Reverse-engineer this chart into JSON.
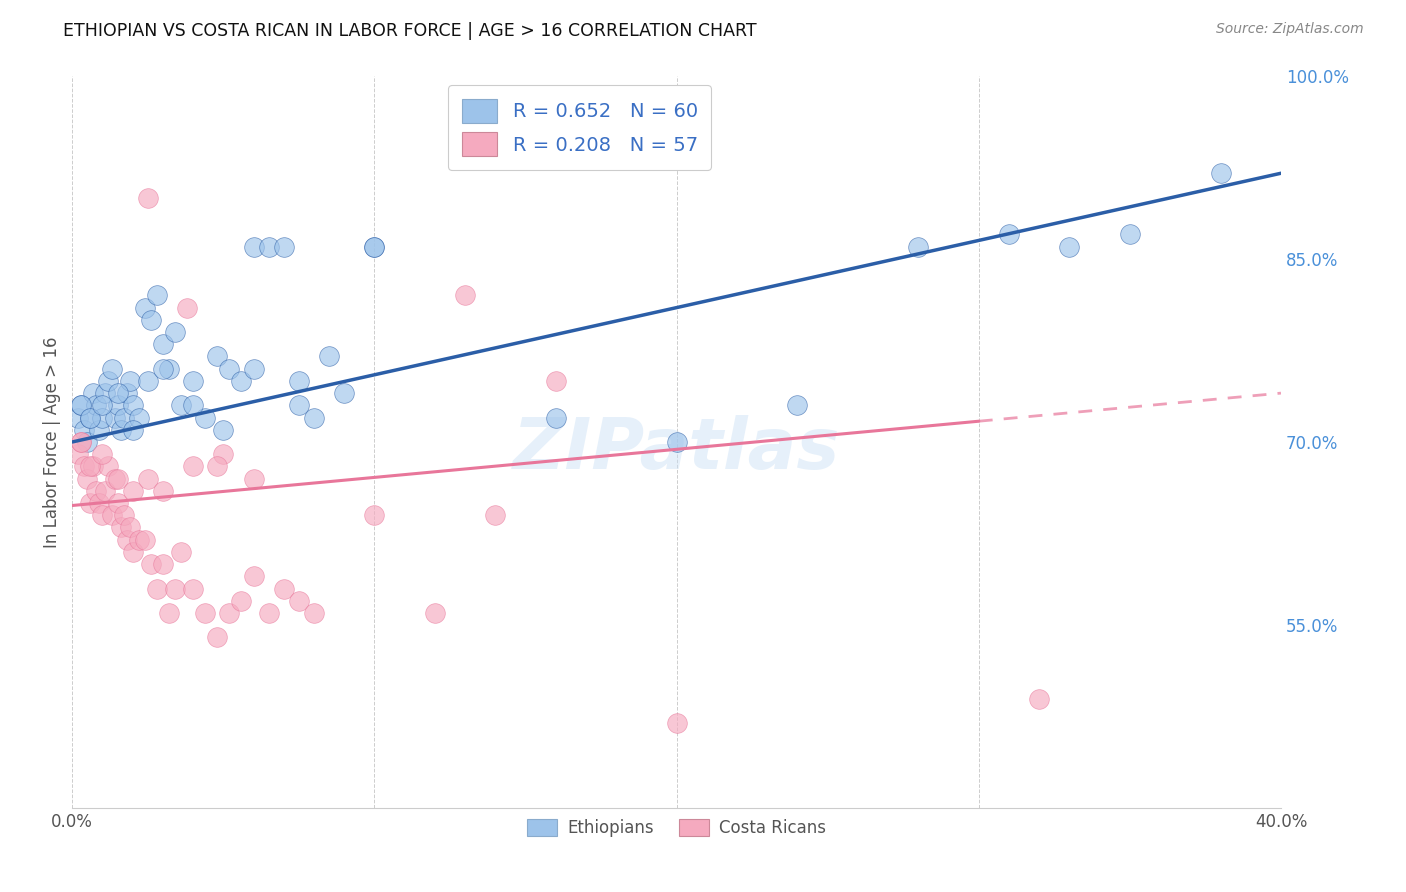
{
  "title": "ETHIOPIAN VS COSTA RICAN IN LABOR FORCE | AGE > 16 CORRELATION CHART",
  "source": "Source: ZipAtlas.com",
  "ylabel": "In Labor Force | Age > 16",
  "xlim": [
    0.0,
    0.4
  ],
  "ylim": [
    0.4,
    1.0
  ],
  "yticks": [
    0.55,
    0.7,
    0.85,
    1.0
  ],
  "ytick_labels": [
    "55.0%",
    "70.0%",
    "85.0%",
    "100.0%"
  ],
  "xticks": [
    0.0,
    0.1,
    0.2,
    0.3,
    0.4
  ],
  "xtick_labels": [
    "0.0%",
    "",
    "",
    "",
    "40.0%"
  ],
  "blue_color": "#9DC3EA",
  "pink_color": "#F5AABF",
  "blue_line_color": "#2B5EA7",
  "pink_line_color": "#E8769A",
  "r_blue": 0.652,
  "n_blue": 60,
  "r_pink": 0.208,
  "n_pink": 57,
  "legend_labels": [
    "Ethiopians",
    "Costa Ricans"
  ],
  "watermark": "ZIPatlas",
  "blue_scatter_x": [
    0.002,
    0.003,
    0.004,
    0.005,
    0.006,
    0.007,
    0.008,
    0.009,
    0.01,
    0.011,
    0.012,
    0.013,
    0.014,
    0.015,
    0.016,
    0.017,
    0.018,
    0.019,
    0.02,
    0.022,
    0.024,
    0.026,
    0.028,
    0.03,
    0.032,
    0.034,
    0.036,
    0.04,
    0.044,
    0.048,
    0.052,
    0.056,
    0.06,
    0.065,
    0.07,
    0.075,
    0.08,
    0.085,
    0.09,
    0.1,
    0.003,
    0.006,
    0.01,
    0.015,
    0.02,
    0.025,
    0.03,
    0.04,
    0.05,
    0.06,
    0.075,
    0.1,
    0.16,
    0.2,
    0.24,
    0.28,
    0.31,
    0.33,
    0.35,
    0.38
  ],
  "blue_scatter_y": [
    0.72,
    0.73,
    0.71,
    0.7,
    0.72,
    0.74,
    0.73,
    0.71,
    0.72,
    0.74,
    0.75,
    0.76,
    0.72,
    0.73,
    0.71,
    0.72,
    0.74,
    0.75,
    0.73,
    0.72,
    0.81,
    0.8,
    0.82,
    0.78,
    0.76,
    0.79,
    0.73,
    0.75,
    0.72,
    0.77,
    0.76,
    0.75,
    0.86,
    0.86,
    0.86,
    0.75,
    0.72,
    0.77,
    0.74,
    0.86,
    0.73,
    0.72,
    0.73,
    0.74,
    0.71,
    0.75,
    0.76,
    0.73,
    0.71,
    0.76,
    0.73,
    0.86,
    0.72,
    0.7,
    0.73,
    0.86,
    0.87,
    0.86,
    0.87,
    0.92
  ],
  "pink_scatter_x": [
    0.002,
    0.003,
    0.004,
    0.005,
    0.006,
    0.007,
    0.008,
    0.009,
    0.01,
    0.011,
    0.012,
    0.013,
    0.014,
    0.015,
    0.016,
    0.017,
    0.018,
    0.019,
    0.02,
    0.022,
    0.024,
    0.026,
    0.028,
    0.03,
    0.032,
    0.034,
    0.036,
    0.04,
    0.044,
    0.048,
    0.052,
    0.056,
    0.06,
    0.065,
    0.07,
    0.075,
    0.08,
    0.1,
    0.12,
    0.14,
    0.003,
    0.006,
    0.01,
    0.015,
    0.02,
    0.025,
    0.03,
    0.04,
    0.05,
    0.16,
    0.2,
    0.32,
    0.13,
    0.025,
    0.038,
    0.048,
    0.06
  ],
  "pink_scatter_y": [
    0.69,
    0.7,
    0.68,
    0.67,
    0.65,
    0.68,
    0.66,
    0.65,
    0.64,
    0.66,
    0.68,
    0.64,
    0.67,
    0.65,
    0.63,
    0.64,
    0.62,
    0.63,
    0.61,
    0.62,
    0.62,
    0.6,
    0.58,
    0.6,
    0.56,
    0.58,
    0.61,
    0.58,
    0.56,
    0.54,
    0.56,
    0.57,
    0.59,
    0.56,
    0.58,
    0.57,
    0.56,
    0.64,
    0.56,
    0.64,
    0.7,
    0.68,
    0.69,
    0.67,
    0.66,
    0.67,
    0.66,
    0.68,
    0.69,
    0.75,
    0.47,
    0.49,
    0.82,
    0.9,
    0.81,
    0.68,
    0.67
  ],
  "blue_line_x0": 0.0,
  "blue_line_y0": 0.7,
  "blue_line_x1": 0.4,
  "blue_line_y1": 0.92,
  "pink_line_x0": 0.0,
  "pink_line_y0": 0.648,
  "pink_line_x1": 0.4,
  "pink_line_y1": 0.74
}
